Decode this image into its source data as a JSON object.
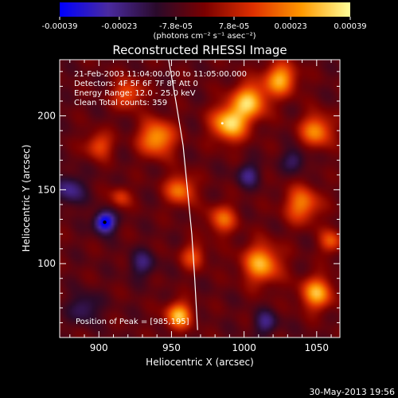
{
  "chart_data": {
    "type": "heatmap",
    "title": "Reconstructed RHESSI Image",
    "xlabel": "Heliocentric X (arcsec)",
    "ylabel": "Heliocentric Y (arcsec)",
    "xlim": [
      873,
      1066
    ],
    "ylim": [
      50,
      238
    ],
    "x_ticks": [
      900,
      950,
      1000,
      1050
    ],
    "y_ticks": [
      100,
      150,
      200
    ],
    "colorbar": {
      "range": [
        -0.00039,
        0.00039
      ],
      "tick_values": [
        -0.00039,
        -0.00023,
        -7.8e-05,
        7.8e-05,
        0.00023,
        0.00039
      ],
      "tick_labels": [
        "-0.00039",
        "-0.00023",
        "-7.8e-05",
        "7.8e-05",
        "0.00023",
        "0.00039"
      ],
      "unit_label": "(photons cm⁻² s⁻¹ asec⁻²)",
      "colors": [
        "#0000ff",
        "#4a2aa0",
        "#2a0a2a",
        "#7a0000",
        "#e03000",
        "#ff9900",
        "#ffff99"
      ]
    },
    "annotations": [
      "21-Feb-2003 11:04:00.000 to 11:05:00.000",
      "Detectors: 4F 5F 6F 7F 8F  Att 0",
      "Energy Range: 12.0 - 25.0 keV",
      "Clean    Total counts: 359"
    ],
    "peak_label": "Position of Peak = [985,195]",
    "peak": [
      985,
      195
    ],
    "min_marker": [
      904,
      128
    ],
    "limb_curve": [
      [
        948,
        238
      ],
      [
        953,
        210
      ],
      [
        958,
        180
      ],
      [
        961,
        150
      ],
      [
        964,
        120
      ],
      [
        966,
        90
      ],
      [
        968,
        55
      ]
    ],
    "blobs": [
      {
        "x": 940,
        "y": 185,
        "v": 0.85,
        "r": 12
      },
      {
        "x": 956,
        "y": 150,
        "v": 0.7,
        "r": 10
      },
      {
        "x": 990,
        "y": 195,
        "v": 1.0,
        "r": 12
      },
      {
        "x": 1004,
        "y": 210,
        "v": 0.9,
        "r": 12
      },
      {
        "x": 1025,
        "y": 225,
        "v": 0.85,
        "r": 11
      },
      {
        "x": 1050,
        "y": 190,
        "v": 0.75,
        "r": 11
      },
      {
        "x": 1040,
        "y": 140,
        "v": 0.7,
        "r": 12
      },
      {
        "x": 1012,
        "y": 100,
        "v": 0.85,
        "r": 13
      },
      {
        "x": 1050,
        "y": 80,
        "v": 0.85,
        "r": 11
      },
      {
        "x": 985,
        "y": 130,
        "v": 0.6,
        "r": 10
      },
      {
        "x": 955,
        "y": 65,
        "v": 0.9,
        "r": 9
      },
      {
        "x": 920,
        "y": 215,
        "v": 0.6,
        "r": 10
      },
      {
        "x": 900,
        "y": 180,
        "v": 0.55,
        "r": 9
      },
      {
        "x": 965,
        "y": 105,
        "v": 0.5,
        "r": 9
      },
      {
        "x": 1060,
        "y": 115,
        "v": 0.55,
        "r": 8
      },
      {
        "x": 915,
        "y": 145,
        "v": 0.45,
        "r": 7
      },
      {
        "x": 904,
        "y": 128,
        "v": -1.0,
        "r": 7
      },
      {
        "x": 880,
        "y": 150,
        "v": -0.5,
        "r": 10
      },
      {
        "x": 1003,
        "y": 160,
        "v": -0.45,
        "r": 8
      },
      {
        "x": 1035,
        "y": 170,
        "v": -0.4,
        "r": 8
      },
      {
        "x": 1015,
        "y": 60,
        "v": -0.45,
        "r": 8
      },
      {
        "x": 890,
        "y": 70,
        "v": -0.4,
        "r": 10
      },
      {
        "x": 930,
        "y": 100,
        "v": -0.4,
        "r": 9
      }
    ]
  },
  "footer": {
    "date": "30-May-2013 19:56"
  }
}
